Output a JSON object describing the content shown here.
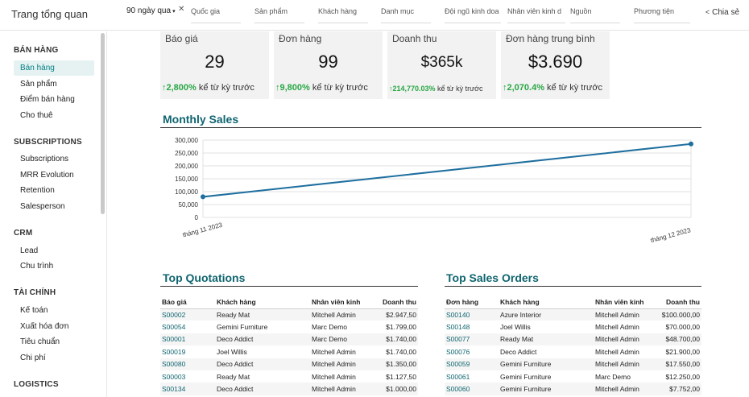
{
  "header": {
    "app_title": "Trang tổng quan",
    "period_label": "90 ngày qua",
    "period_caret": "▾",
    "clear_icon": "✕",
    "filters": [
      "Quốc gia",
      "Sản phẩm",
      "Khách hàng",
      "Danh mục",
      "Đội ngũ kinh doa",
      "Nhân viên kinh d",
      "Nguồn",
      "Phương tiện"
    ],
    "share_label": "Chia sẻ",
    "share_icon": "share-icon"
  },
  "sidebar": {
    "sections": [
      {
        "title": "BÁN HÀNG",
        "items": [
          "Bán hàng",
          "Sản phẩm",
          "Điểm bán hàng",
          "Cho thuê"
        ]
      },
      {
        "title": "SUBSCRIPTIONS",
        "items": [
          "Subscriptions",
          "MRR Evolution",
          "Retention",
          "Salesperson"
        ]
      },
      {
        "title": "CRM",
        "items": [
          "Lead",
          "Chu trình"
        ]
      },
      {
        "title": "TÀI CHÍNH",
        "items": [
          "Kế toán",
          "Xuất hóa đơn",
          "Tiêu chuẩn",
          "Chi phí"
        ]
      },
      {
        "title": "LOGISTICS",
        "items": []
      }
    ],
    "active_item": "Bán hàng"
  },
  "kpis": [
    {
      "label": "Báo giá",
      "value": "29",
      "arrow": "↑",
      "pct": "2,800%",
      "suffix": " kể từ kỳ trước"
    },
    {
      "label": "Đơn hàng",
      "value": "99",
      "arrow": "↑",
      "pct": "9,800%",
      "suffix": " kể từ kỳ trước"
    },
    {
      "label": "Doanh thu",
      "value": "$365k",
      "arrow": "↑",
      "pct": "214,770.03%",
      "suffix": " kể từ kỳ trước"
    },
    {
      "label": "Đơn hàng trung bình",
      "value": "$3.690",
      "arrow": "↑",
      "pct": "2,070.4%",
      "suffix": " kể từ kỳ trước"
    }
  ],
  "chart_title": "Monthly Sales",
  "chart_data": {
    "type": "line",
    "title": "Monthly Sales",
    "categories": [
      "tháng 11 2023",
      "tháng 12 2023"
    ],
    "series": [
      {
        "values": [
          80000,
          285000
        ]
      }
    ],
    "ylim": [
      0,
      300000
    ],
    "yticks": [
      "0",
      "50,000",
      "100,000",
      "150,000",
      "200,000",
      "250,000",
      "300,000"
    ],
    "grid": true,
    "color": "#1f6f9f"
  },
  "quotations": {
    "title": "Top Quotations",
    "headers": [
      "Báo giá",
      "Khách hàng",
      "Nhân viên kinh",
      "Doanh thu"
    ],
    "rows": [
      [
        "S00002",
        "Ready Mat",
        "Mitchell Admin",
        "$2.947,50"
      ],
      [
        "S00054",
        "Gemini Furniture",
        "Marc Demo",
        "$1.799,00"
      ],
      [
        "S00001",
        "Deco Addict",
        "Marc Demo",
        "$1.740,00"
      ],
      [
        "S00019",
        "Joel Willis",
        "Mitchell Admin",
        "$1.740,00"
      ],
      [
        "S00080",
        "Deco Addict",
        "Mitchell Admin",
        "$1.350,00"
      ],
      [
        "S00003",
        "Ready Mat",
        "Mitchell Admin",
        "$1.127,50"
      ],
      [
        "S00134",
        "Deco Addict",
        "Mitchell Admin",
        "$1.000,00"
      ]
    ]
  },
  "orders": {
    "title": "Top Sales Orders",
    "headers": [
      "Đơn hàng",
      "Khách hàng",
      "Nhân viên kinh",
      "Doanh thu"
    ],
    "rows": [
      [
        "S00140",
        "Azure Interior",
        "Mitchell Admin",
        "$100.000,00"
      ],
      [
        "S00148",
        "Joel Willis",
        "Mitchell Admin",
        "$70.000,00"
      ],
      [
        "S00077",
        "Ready Mat",
        "Mitchell Admin",
        "$48.700,00"
      ],
      [
        "S00076",
        "Deco Addict",
        "Mitchell Admin",
        "$21.900,00"
      ],
      [
        "S00059",
        "Gemini Furniture",
        "Mitchell Admin",
        "$17.550,00"
      ],
      [
        "S00061",
        "Gemini Furniture",
        "Marc Demo",
        "$12.250,00"
      ],
      [
        "S00060",
        "Gemini Furniture",
        "Mitchell Admin",
        "$7.752,00"
      ]
    ]
  },
  "colors": {
    "accent": "#017e84",
    "heading": "#0f6570",
    "positive": "#28a745",
    "line": "#1f6f9f"
  }
}
